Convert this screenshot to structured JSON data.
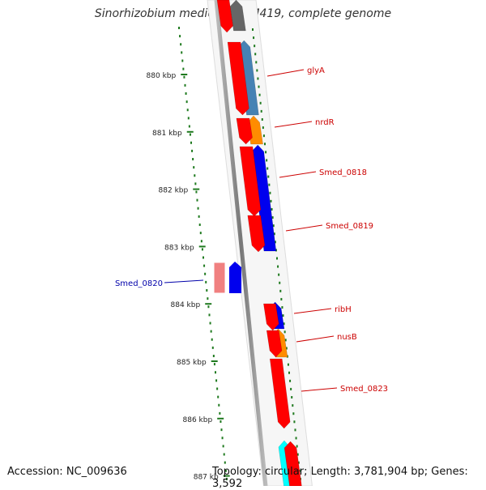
{
  "title": "Sinorhizobium medicae WSM419, complete genome",
  "accession": "Accession: NC_009636",
  "topology": "Topology: circular; Length: 3,781,904 bp; Genes: 3,592",
  "ruler": [
    {
      "label": "880 kbp"
    },
    {
      "label": "881 kbp"
    },
    {
      "label": "882 kbp"
    },
    {
      "label": "883 kbp"
    },
    {
      "label": "884 kbp"
    },
    {
      "label": "885 kbp"
    },
    {
      "label": "886 kbp"
    },
    {
      "label": "887 kb"
    }
  ],
  "gene_labels": [
    {
      "name": "glyA",
      "strand": "reverse"
    },
    {
      "name": "nrdR",
      "strand": "reverse"
    },
    {
      "name": "Smed_0818",
      "strand": "reverse"
    },
    {
      "name": "Smed_0819",
      "strand": "reverse"
    },
    {
      "name": "Smed_0820",
      "strand": "forward"
    },
    {
      "name": "ribH",
      "strand": "reverse"
    },
    {
      "name": "nusB",
      "strand": "reverse"
    },
    {
      "name": "Smed_0823",
      "strand": "reverse"
    }
  ],
  "colors": {
    "axis": "#888888",
    "ruler_tick": "#1f7a1f",
    "reverse_label": "#cc0000",
    "forward_label": "#0000aa",
    "cds": "#ff0000",
    "cds_light": "#f08080",
    "cog_blue": "#0000ee",
    "cog_steel": "#4682b4",
    "cog_orange": "#ff8c00",
    "cog_cyan": "#00ffff",
    "cog_gray": "#666666"
  }
}
